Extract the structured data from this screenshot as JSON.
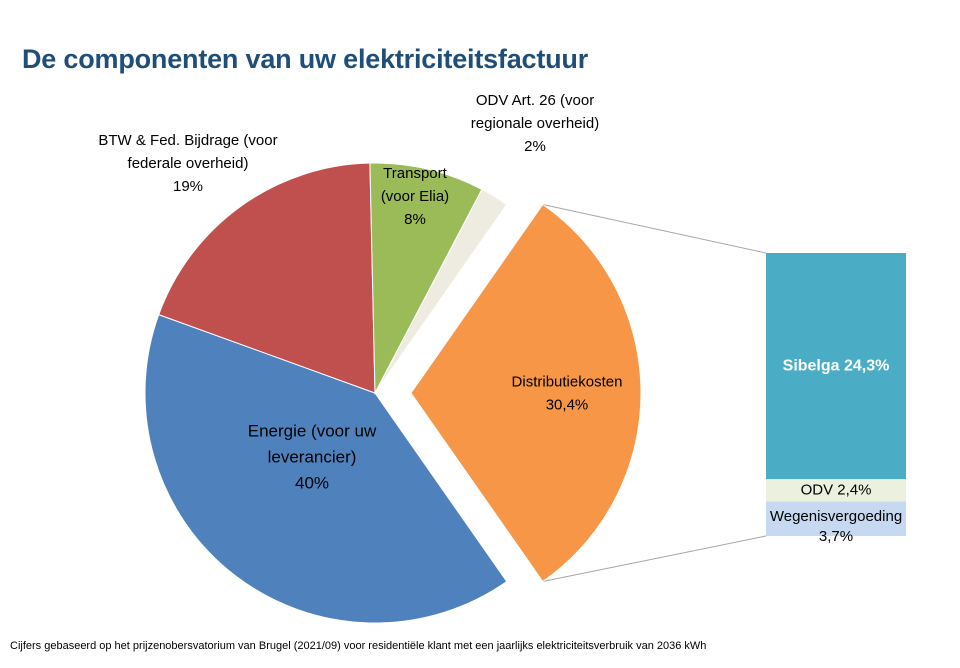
{
  "title": "De componenten van uw elektriciteitsfactuur",
  "footnote": "Cijfers gebaseerd op het prijzenobersvatorium van Brugel (2021/09) voor residentiële klant met een jaarlijks elektriciteitsverbruik van 2036 kWh",
  "chart_data": [
    {
      "type": "pie",
      "slices": [
        {
          "label_lines": [
            "Distributiekosten",
            "30,4%"
          ],
          "value": 30.4,
          "color": "#f79646",
          "exploded": true
        },
        {
          "label_lines": [
            "Energie (voor uw",
            "leverancier)",
            "40%"
          ],
          "value": 40,
          "color": "#4f81bd"
        },
        {
          "label_lines": [
            "BTW & Fed. Bijdrage (voor",
            "federale overheid)",
            "19%"
          ],
          "value": 19,
          "color": "#c0504d"
        },
        {
          "label_lines": [
            "Transport",
            "(voor Elia)",
            "8%"
          ],
          "value": 8,
          "color": "#9bbb59"
        },
        {
          "label_lines": [
            "ODV Art. 26 (voor",
            "regionale overheid)",
            "2%"
          ],
          "value": 2,
          "color": "#eeece1"
        }
      ]
    },
    {
      "type": "bar",
      "stacked": true,
      "segments": [
        {
          "label_lines": [
            "Sibelga 24,3%"
          ],
          "value": 24.3,
          "color": "#4bacc6",
          "bold": true
        },
        {
          "label_lines": [
            "ODV 2,4%"
          ],
          "value": 2.4,
          "color": "#ebf1de"
        },
        {
          "label_lines": [
            "Wegenisvergoeding",
            "3,7%"
          ],
          "value": 3.7,
          "color": "#c6d9f1"
        }
      ]
    }
  ]
}
